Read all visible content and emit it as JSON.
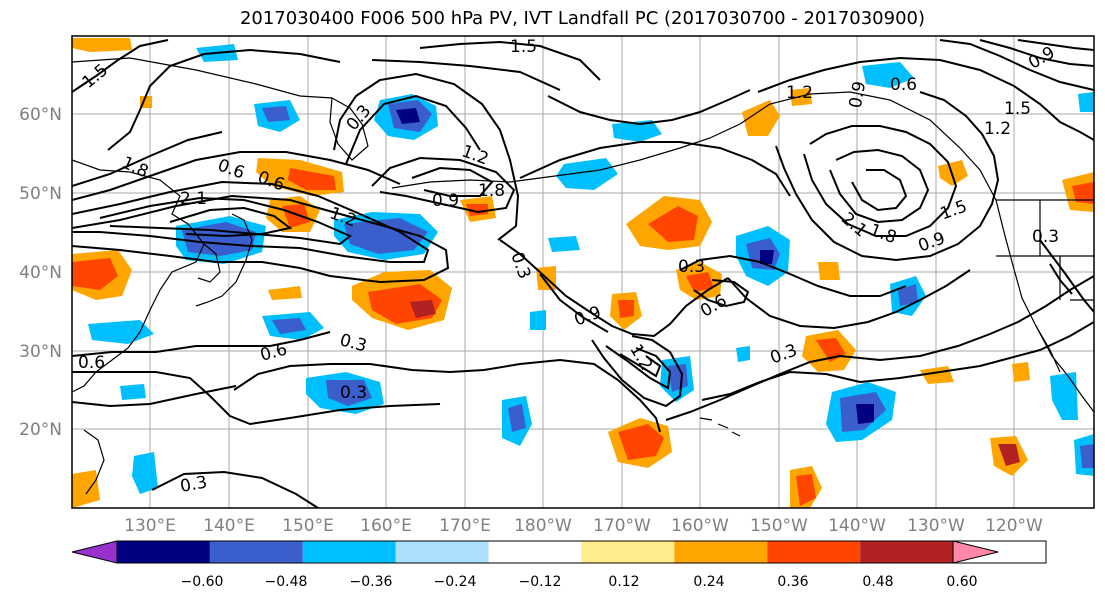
{
  "title": "2017030400 F006 500 hPa PV, IVT Landfall PC (2017030700 - 2017030900)",
  "lat_labels": [
    "60°N",
    "50°N",
    "40°N",
    "30°N",
    "20°N"
  ],
  "lon_labels": [
    "130°E",
    "140°E",
    "150°E",
    "160°E",
    "170°E",
    "180°W",
    "170°W",
    "160°W",
    "150°W",
    "140°W",
    "130°W",
    "120°W"
  ],
  "contour_labels": [
    "1.5",
    "1.5",
    "1.8",
    "2.1",
    "0.6",
    "0.6",
    "1.2",
    "0.3",
    "1.2",
    "1.8",
    "0.9",
    "0.3",
    "1.2",
    "0.9",
    "0.6",
    "0.9",
    "1.2",
    "1.5",
    "1.8",
    "2.1",
    "0.9",
    "1.5",
    "0.3",
    "0.3",
    "0.6",
    "0.9",
    "1.2",
    "0.3",
    "0.6",
    "0.6",
    "0.3",
    "0.3",
    "0.3"
  ],
  "colorbar": {
    "ticks": [
      "−0.60",
      "−0.48",
      "−0.36",
      "−0.24",
      "−0.12",
      "0.12",
      "0.24",
      "0.36",
      "0.48",
      "0.60"
    ],
    "colors": [
      "#9932CC",
      "#000080",
      "#3A5FCD",
      "#00BFFF",
      "#ADDFFF",
      "#FFFFFF",
      "#FFEC8B",
      "#FFA500",
      "#FF4500",
      "#B22222",
      "#FF88AA"
    ]
  }
}
